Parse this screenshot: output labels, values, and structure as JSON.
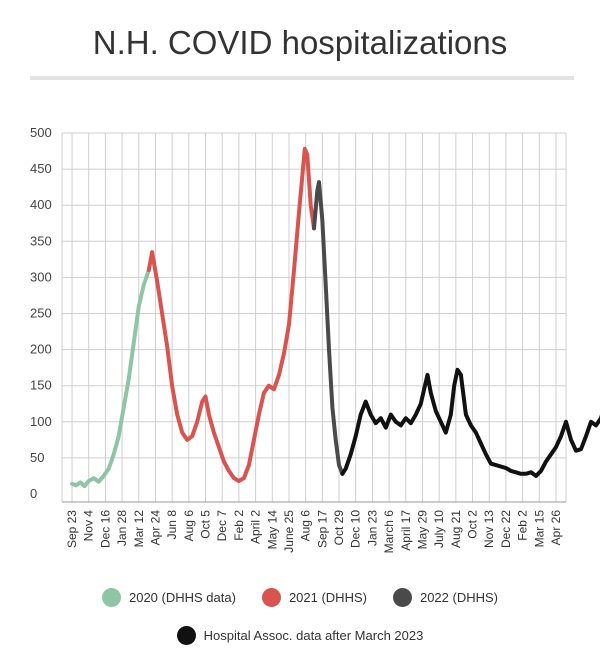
{
  "chart_data": {
    "type": "line",
    "title": "N.H. COVID hospitalizations",
    "xlabel": "",
    "ylabel": "",
    "ylim": [
      0,
      500
    ],
    "yticks": [
      0,
      50,
      100,
      150,
      200,
      250,
      300,
      350,
      400,
      450,
      500
    ],
    "grid": true,
    "legend_position": "bottom",
    "x_tick_labels": [
      "Sep 23",
      "Nov 4",
      "Dec 16",
      "Jan 28",
      "Mar 12",
      "Apr 24",
      "Jun 8",
      "Aug 6",
      "Oct 5",
      "Dec 7",
      "Feb 2",
      "April 2",
      "May 14",
      "June 25",
      "Aug 6",
      "Sep 17",
      "Oct 29",
      "Dec 10",
      "Jan 23",
      "March 6",
      "April 17",
      "May 29",
      "July 10",
      "Aug 21",
      "Oct 2",
      "Nov 13",
      "Dec 22",
      "Feb 2",
      "Mar 15",
      "Apr 26"
    ],
    "series": [
      {
        "name": "2020 (DHHS data)",
        "color": "#8ec5a4",
        "points": [
          [
            0,
            14
          ],
          [
            0.25,
            12
          ],
          [
            0.5,
            16
          ],
          [
            0.75,
            11
          ],
          [
            1,
            18
          ],
          [
            1.3,
            22
          ],
          [
            1.6,
            17
          ],
          [
            1.9,
            25
          ],
          [
            2.2,
            35
          ],
          [
            2.5,
            55
          ],
          [
            2.8,
            80
          ],
          [
            3.1,
            120
          ],
          [
            3.4,
            160
          ],
          [
            3.7,
            210
          ],
          [
            4,
            260
          ],
          [
            4.3,
            290
          ],
          [
            4.6,
            310
          ]
        ]
      },
      {
        "name": "2021 (DHHS)",
        "color": "#d9534f",
        "points": [
          [
            4.6,
            310
          ],
          [
            4.8,
            335
          ],
          [
            5.1,
            295
          ],
          [
            5.4,
            250
          ],
          [
            5.7,
            205
          ],
          [
            6,
            150
          ],
          [
            6.3,
            110
          ],
          [
            6.6,
            85
          ],
          [
            6.9,
            75
          ],
          [
            7.2,
            80
          ],
          [
            7.5,
            100
          ],
          [
            7.8,
            128
          ],
          [
            8,
            135
          ],
          [
            8.2,
            110
          ],
          [
            8.5,
            85
          ],
          [
            8.8,
            65
          ],
          [
            9.1,
            45
          ],
          [
            9.4,
            32
          ],
          [
            9.7,
            22
          ],
          [
            10,
            18
          ],
          [
            10.3,
            22
          ],
          [
            10.6,
            40
          ],
          [
            10.9,
            75
          ],
          [
            11.2,
            110
          ],
          [
            11.5,
            140
          ],
          [
            11.8,
            150
          ],
          [
            12.1,
            145
          ],
          [
            12.4,
            165
          ],
          [
            12.7,
            195
          ],
          [
            13,
            235
          ],
          [
            13.3,
            310
          ],
          [
            13.6,
            390
          ],
          [
            13.8,
            440
          ],
          [
            13.95,
            478
          ],
          [
            14.1,
            470
          ],
          [
            14.3,
            400
          ],
          [
            14.5,
            368
          ]
        ]
      },
      {
        "name": "2022 (DHHS)",
        "color": "#4a4a4a",
        "points": [
          [
            14.5,
            368
          ],
          [
            14.7,
            420
          ],
          [
            14.8,
            432
          ],
          [
            15,
            380
          ],
          [
            15.2,
            290
          ],
          [
            15.4,
            200
          ],
          [
            15.6,
            120
          ],
          [
            15.8,
            75
          ],
          [
            16,
            40
          ],
          [
            16.2,
            28
          ]
        ]
      },
      {
        "name": "Hospital Assoc. data after March 2023",
        "color": "#111111",
        "points": [
          [
            16.2,
            28
          ],
          [
            16.4,
            35
          ],
          [
            16.7,
            55
          ],
          [
            17,
            80
          ],
          [
            17.3,
            110
          ],
          [
            17.6,
            128
          ],
          [
            17.9,
            110
          ],
          [
            18.2,
            98
          ],
          [
            18.5,
            105
          ],
          [
            18.8,
            92
          ],
          [
            19.1,
            110
          ],
          [
            19.4,
            100
          ],
          [
            19.7,
            95
          ],
          [
            20,
            105
          ],
          [
            20.3,
            98
          ],
          [
            20.6,
            110
          ],
          [
            20.9,
            125
          ],
          [
            21.1,
            145
          ],
          [
            21.3,
            165
          ],
          [
            21.5,
            140
          ],
          [
            21.8,
            115
          ],
          [
            22.1,
            100
          ],
          [
            22.4,
            85
          ],
          [
            22.7,
            110
          ],
          [
            22.9,
            150
          ],
          [
            23.1,
            172
          ],
          [
            23.3,
            165
          ],
          [
            23.6,
            110
          ],
          [
            23.9,
            95
          ],
          [
            24.2,
            85
          ],
          [
            24.5,
            70
          ],
          [
            24.8,
            55
          ],
          [
            25.1,
            42
          ],
          [
            25.4,
            40
          ],
          [
            25.7,
            38
          ],
          [
            26,
            36
          ],
          [
            26.3,
            32
          ],
          [
            26.6,
            30
          ],
          [
            26.9,
            28
          ],
          [
            27.2,
            28
          ],
          [
            27.5,
            30
          ],
          [
            27.8,
            25
          ],
          [
            28.1,
            32
          ],
          [
            28.4,
            45
          ],
          [
            28.7,
            55
          ],
          [
            29,
            65
          ],
          [
            29.3,
            80
          ],
          [
            29.6,
            100
          ],
          [
            29.9,
            75
          ],
          [
            30.2,
            60
          ],
          [
            30.5,
            62
          ],
          [
            30.8,
            80
          ],
          [
            31.1,
            100
          ],
          [
            31.4,
            95
          ],
          [
            31.7,
            105
          ],
          [
            32,
            130
          ],
          [
            32.3,
            155
          ],
          [
            32.5,
            175
          ],
          [
            32.7,
            150
          ],
          [
            33,
            105
          ],
          [
            33.3,
            85
          ],
          [
            33.6,
            75
          ],
          [
            33.9,
            60
          ],
          [
            34.2,
            45
          ],
          [
            34.5,
            35
          ],
          [
            34.8,
            25
          ],
          [
            35.1,
            20
          ],
          [
            35.4,
            18
          ],
          [
            35.7,
            14
          ],
          [
            36,
            12
          ]
        ]
      }
    ],
    "legend": [
      [
        {
          "label": "2020 (DHHS data)",
          "color": "#8ec5a4"
        },
        {
          "label": "2021 (DHHS)",
          "color": "#d9534f"
        },
        {
          "label": "2022 (DHHS)",
          "color": "#4a4a4a"
        }
      ],
      [
        {
          "label": "Hospital Assoc. data after March 2023",
          "color": "#111111"
        }
      ]
    ]
  }
}
